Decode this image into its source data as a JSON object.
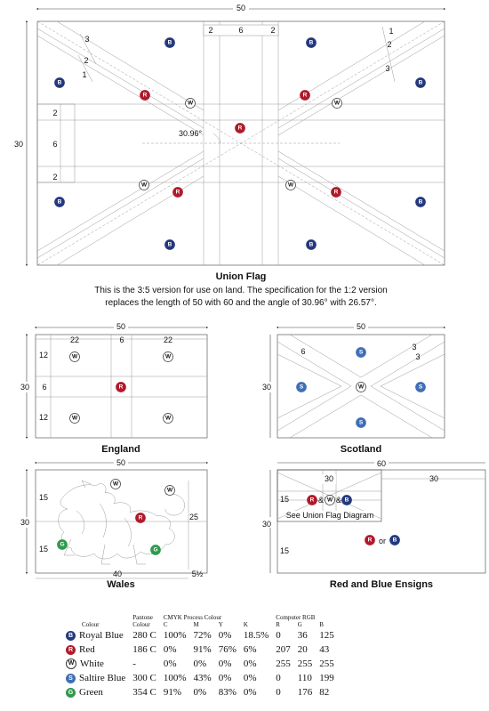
{
  "union": {
    "title": "Union Flag",
    "desc1": "This is the 3:5 version for use on land. The specification for the 1:2 version",
    "desc2": "replaces the length of 50 with 60 and the angle of 30.96° with 26.57°.",
    "width_dim": "50",
    "height_dim": "30",
    "stripe_dims": [
      "2",
      "6",
      "2"
    ],
    "diag_dims_left": [
      "3",
      "2",
      "1"
    ],
    "diag_dims_right": [
      "1",
      "2",
      "3"
    ],
    "cross_dims": [
      "2",
      "6",
      "2"
    ],
    "angle": "30.96°"
  },
  "england": {
    "title": "England",
    "width_dim": "50",
    "height_dim": "30",
    "top_dims": [
      "22",
      "6",
      "22"
    ],
    "side_dims": [
      "12",
      "6",
      "12"
    ]
  },
  "scotland": {
    "title": "Scotland",
    "width_dim": "50",
    "height_dim": "30",
    "diag_dim": "6",
    "right_dims": [
      "3",
      "3"
    ]
  },
  "wales": {
    "title": "Wales",
    "width_dim": "50",
    "height_dim": "30",
    "left_dims": [
      "15",
      "15"
    ],
    "right_dim": "25",
    "bottom_dim": "40",
    "bottom_small": "5½"
  },
  "ensigns": {
    "title": "Red and Blue Ensigns",
    "width_dim": "60",
    "height_dim": "30",
    "canton_w": "30",
    "fly_w": "30",
    "canton_h": "15",
    "lower_h": "15",
    "amp": "&",
    "or": "or",
    "see_text": "See Union Flag Diagram"
  },
  "badges": {
    "B": "B",
    "R": "R",
    "W": "W",
    "S": "S",
    "G": "G"
  },
  "colors": {
    "B": "#24387D",
    "R": "#B01A2B",
    "W": "#ffffff",
    "S": "#3F6FB6",
    "G": "#2F9A4D"
  },
  "legend": {
    "header": {
      "colour": "Colour",
      "pantone": "Pantone",
      "pantone2": "Colour",
      "cmyk": "CMYK Process Colour",
      "c": "C",
      "m": "M",
      "y": "Y",
      "k": "K",
      "rgb": "Computer RGB",
      "r": "R",
      "g": "G",
      "b": "B"
    },
    "rows": [
      {
        "badge": "B",
        "name": "Royal Blue",
        "pantone": "280 C",
        "c": "100%",
        "m": "72%",
        "y": "0%",
        "k": "18.5%",
        "r": "0",
        "g": "36",
        "b": "125"
      },
      {
        "badge": "R",
        "name": "Red",
        "pantone": "186 C",
        "c": "0%",
        "m": "91%",
        "y": "76%",
        "k": "6%",
        "r": "207",
        "g": "20",
        "b": "43"
      },
      {
        "badge": "W",
        "name": "White",
        "pantone": "-",
        "c": "0%",
        "m": "0%",
        "y": "0%",
        "k": "0%",
        "r": "255",
        "g": "255",
        "b": "255"
      },
      {
        "badge": "S",
        "name": "Saltire Blue",
        "pantone": "300 C",
        "c": "100%",
        "m": "43%",
        "y": "0%",
        "k": "0%",
        "r": "0",
        "g": "110",
        "b": "199"
      },
      {
        "badge": "G",
        "name": "Green",
        "pantone": "354 C",
        "c": "91%",
        "m": "0%",
        "y": "83%",
        "k": "0%",
        "r": "0",
        "g": "176",
        "b": "82"
      }
    ]
  }
}
